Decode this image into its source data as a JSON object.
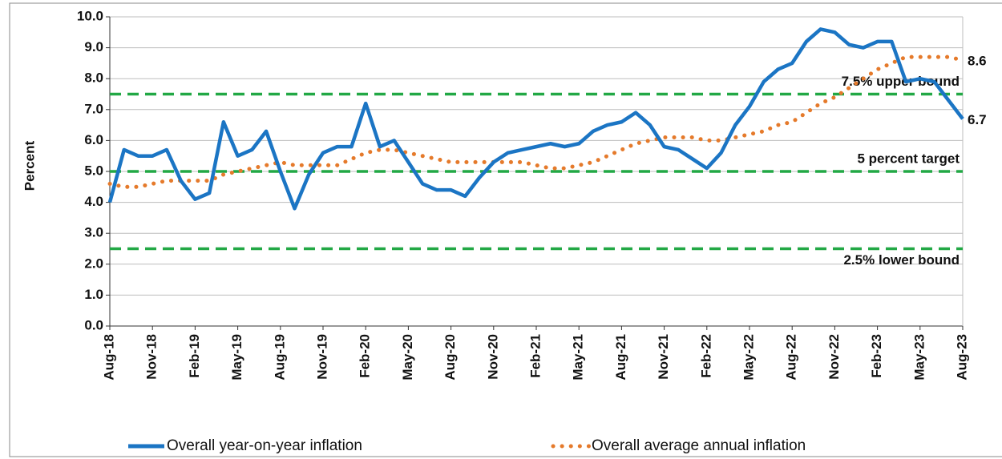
{
  "chart_data": {
    "type": "line",
    "y_label": "Percent",
    "categories": [
      "Aug-18",
      null,
      null,
      "Nov-18",
      null,
      null,
      "Feb-19",
      null,
      null,
      "May-19",
      null,
      null,
      "Aug-19",
      null,
      null,
      "Nov-19",
      null,
      null,
      "Feb-20",
      null,
      null,
      "May-20",
      null,
      null,
      "Aug-20",
      null,
      null,
      "Nov-20",
      null,
      null,
      "Feb-21",
      null,
      null,
      "May-21",
      null,
      null,
      "Aug-21",
      null,
      null,
      "Nov-21",
      null,
      null,
      "Feb-22",
      null,
      null,
      "May-22",
      null,
      null,
      "Aug-22",
      null,
      null,
      "Nov-22",
      null,
      null,
      "Feb-23",
      null,
      null,
      "May-23",
      null,
      null,
      "Aug-23"
    ],
    "series": [
      {
        "name": "Overall year-on-year inflation",
        "color": "#1b75c4",
        "style": "solid",
        "values": [
          4.0,
          5.7,
          5.5,
          5.5,
          5.7,
          4.7,
          4.1,
          4.3,
          6.6,
          5.5,
          5.7,
          6.3,
          5.0,
          3.8,
          4.9,
          5.6,
          5.8,
          5.8,
          7.2,
          5.8,
          6.0,
          5.3,
          4.6,
          4.4,
          4.4,
          4.2,
          4.8,
          5.3,
          5.6,
          5.7,
          5.8,
          5.9,
          5.8,
          5.9,
          6.3,
          6.5,
          6.6,
          6.9,
          6.5,
          5.8,
          5.7,
          5.4,
          5.1,
          5.6,
          6.5,
          7.1,
          7.9,
          8.3,
          8.5,
          9.2,
          9.6,
          9.5,
          9.1,
          9.0,
          9.2,
          9.2,
          7.9,
          8.0,
          7.9,
          7.3,
          6.7
        ]
      },
      {
        "name": "Overall average annual inflation",
        "color": "#e57a2b",
        "style": "dotted",
        "values": [
          4.6,
          4.5,
          4.5,
          4.6,
          4.7,
          4.7,
          4.7,
          4.7,
          4.9,
          5.0,
          5.1,
          5.2,
          5.3,
          5.2,
          5.2,
          5.2,
          5.2,
          5.4,
          5.6,
          5.7,
          5.7,
          5.6,
          5.5,
          5.4,
          5.3,
          5.3,
          5.3,
          5.3,
          5.3,
          5.3,
          5.2,
          5.1,
          5.1,
          5.2,
          5.3,
          5.5,
          5.7,
          5.9,
          6.0,
          6.1,
          6.1,
          6.1,
          6.0,
          6.0,
          6.1,
          6.2,
          6.3,
          6.5,
          6.6,
          6.9,
          7.2,
          7.4,
          7.7,
          8.0,
          8.3,
          8.5,
          8.7,
          8.7,
          8.7,
          8.7,
          8.6
        ]
      }
    ],
    "reference_lines": [
      {
        "value": 7.5,
        "label": "7.5% upper bound",
        "color": "#22a845"
      },
      {
        "value": 5,
        "label": "5 percent target",
        "color": "#22a845"
      },
      {
        "value": 2.5,
        "label": "2.5% lower bound",
        "color": "#22a845"
      }
    ],
    "ylim": [
      0,
      10
    ],
    "yticks": [
      {
        "value": 0,
        "label": "0.0"
      },
      {
        "value": 1,
        "label": "1.0"
      },
      {
        "value": 2,
        "label": "2.0"
      },
      {
        "value": 3,
        "label": "3.0"
      },
      {
        "value": 4,
        "label": "4.0"
      },
      {
        "value": 5,
        "label": "5.0"
      },
      {
        "value": 6,
        "label": "6.0"
      },
      {
        "value": 7,
        "label": "7.0"
      },
      {
        "value": 8,
        "label": "8.0"
      },
      {
        "value": 9,
        "label": "9.0"
      },
      {
        "value": 10,
        "label": "10.0"
      }
    ],
    "grid": true
  }
}
